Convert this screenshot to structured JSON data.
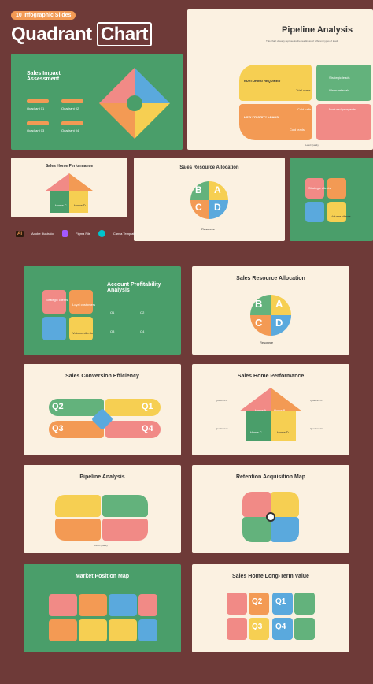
{
  "header": {
    "badge": "10 Infographic Slides",
    "title_part1": "Quadrant",
    "title_part2": "Chart"
  },
  "software": [
    "Adobe Illustrator",
    "Figma File",
    "Canva Template"
  ],
  "slides": {
    "pipeline_top": {
      "title": "Pipeline Analysis",
      "labels": [
        "NURTURING REQUIRED",
        "Trial users",
        "Strategic leads",
        "Warm referrals",
        "LOW PRIORITY LEADS",
        "Cold calls",
        "Nurtured prospects",
        "Cold leads"
      ],
      "y": "Conversion Likelihood",
      "x": "Lead Quality"
    },
    "impact": {
      "title": "Sales Impact Assessment",
      "items": [
        "Quadrant 01",
        "Quadrant 02",
        "Quadrant 03",
        "Quadrant 04"
      ]
    },
    "home_small": {
      "title": "Sales Home Performance",
      "cells": [
        "Home A",
        "Home B",
        "Home C",
        "Home D"
      ]
    },
    "resource_small": {
      "title": "Sales Resource Allocation",
      "letters": [
        "B",
        "A",
        "C",
        "D"
      ],
      "caption": "Resource"
    },
    "green_partial": {
      "labels": [
        "Strategic clients",
        "Volume clients"
      ]
    },
    "profit": {
      "title": "Account Profitability Analysis",
      "labels": [
        "Strategic clients",
        "Loyal customers",
        "Volume clients"
      ],
      "items": [
        "Q1",
        "Q2",
        "Q3",
        "Q4"
      ]
    },
    "resource": {
      "title": "Sales Resource Allocation",
      "letters": [
        "B",
        "A",
        "C",
        "D"
      ],
      "caption": "Resource"
    },
    "efficiency": {
      "title": "Sales Conversion Efficiency",
      "quads": [
        "Q2",
        "Q1",
        "Q3",
        "Q4"
      ]
    },
    "home": {
      "title": "Sales Home Performance",
      "cells": [
        "Home A",
        "Home B",
        "Home C",
        "Home D"
      ],
      "labels": [
        "Quadrant A",
        "Quadrant B",
        "Quadrant C",
        "Quadrant D"
      ]
    },
    "pipeline": {
      "title": "Pipeline Analysis",
      "x": "Lead Quality"
    },
    "retention": {
      "title": "Retention Acquisition Map"
    },
    "market": {
      "title": "Market Position Map"
    },
    "longterm": {
      "title": "Sales Home Long-Term Value",
      "quads": [
        "Q2",
        "Q1",
        "Q3",
        "Q4"
      ]
    }
  }
}
